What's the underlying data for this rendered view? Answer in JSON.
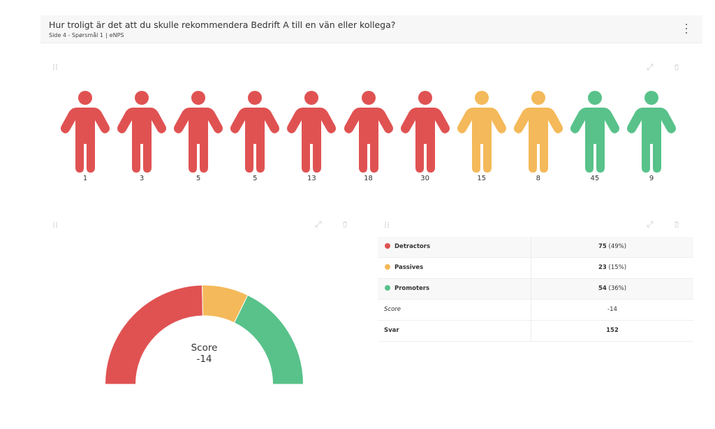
{
  "question": {
    "title": "Hur troligt är det att du skulle rekommendera Bedrift A till en vän eller kollega?",
    "page": "Side 4 - Spørsmål 1",
    "type": "eNPS"
  },
  "colors": {
    "detractor": "#e05252",
    "passive": "#f4b95a",
    "promoter": "#58c28a"
  },
  "chart_data": [
    {
      "type": "bar",
      "categories": [
        "1",
        "3",
        "5",
        "5",
        "13",
        "18",
        "30",
        "15",
        "8",
        "45",
        "9"
      ],
      "values": [
        1,
        3,
        5,
        5,
        13,
        18,
        30,
        15,
        8,
        45,
        9
      ],
      "groups": [
        "detractor",
        "detractor",
        "detractor",
        "detractor",
        "detractor",
        "detractor",
        "detractor",
        "passive",
        "passive",
        "promoter",
        "promoter"
      ]
    },
    {
      "type": "pie",
      "categories": [
        "Detractors",
        "Passives",
        "Promoters"
      ],
      "values": [
        75,
        23,
        54
      ],
      "center_label": "Score",
      "center_value": "-14"
    }
  ],
  "stats": {
    "rows": [
      {
        "label": "Detractors",
        "value": "75",
        "pct": "(49%)",
        "color": "#e05252"
      },
      {
        "label": "Passives",
        "value": "23",
        "pct": "(15%)",
        "color": "#f4b95a"
      },
      {
        "label": "Promoters",
        "value": "54",
        "pct": "(36%)",
        "color": "#58c28a"
      }
    ],
    "score_label": "Score",
    "score_value": "-14",
    "answers_label": "Svar",
    "answers_value": "152"
  }
}
